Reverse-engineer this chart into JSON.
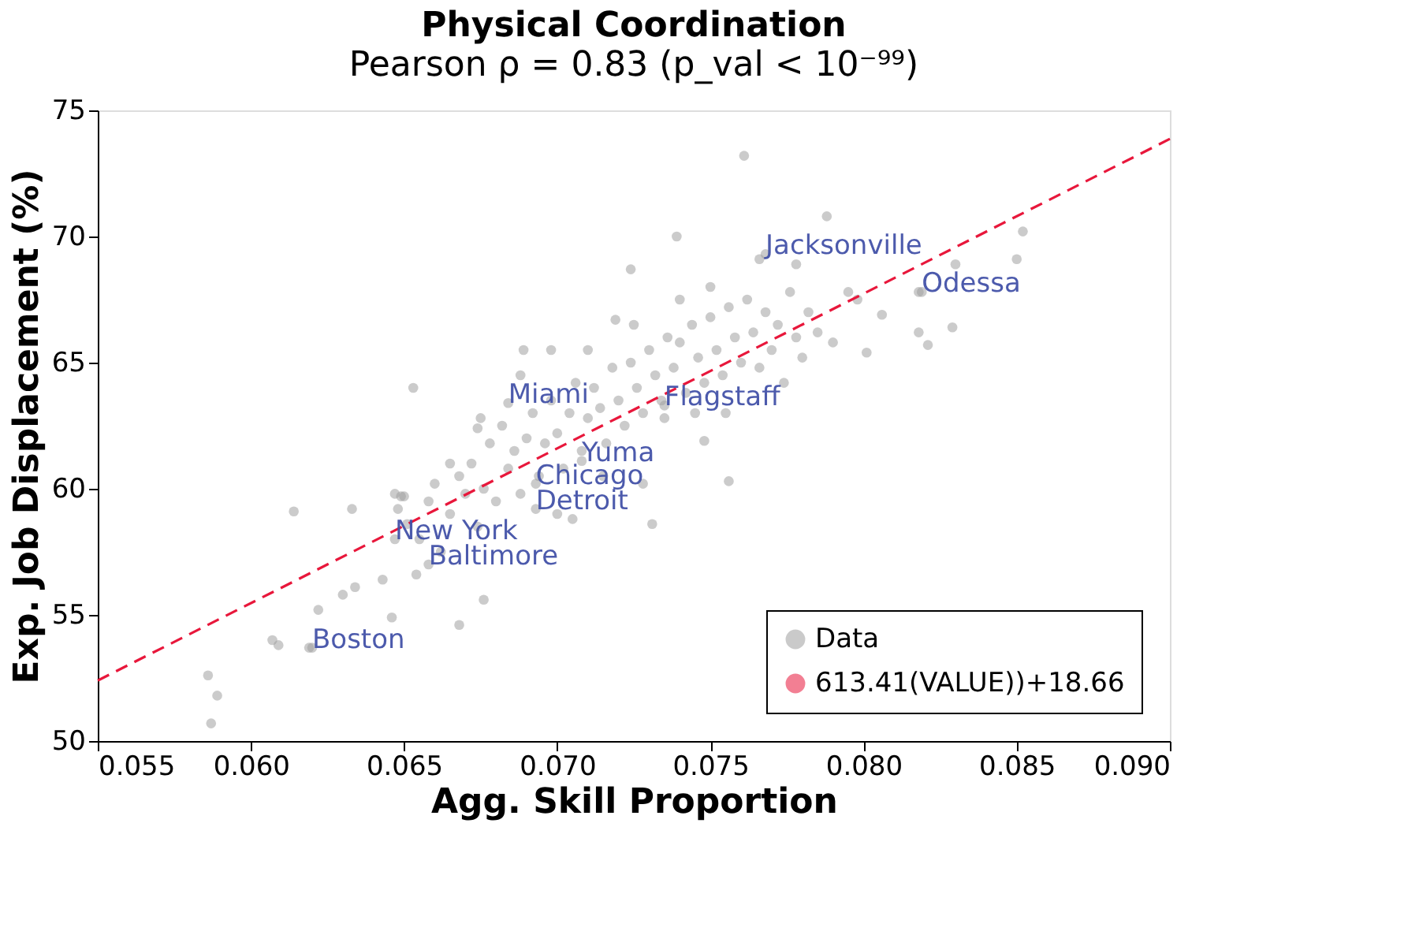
{
  "chart_data": {
    "type": "scatter",
    "title": "Physical Coordination",
    "subtitle": "Pearson ρ = 0.83 (p_val < 10⁻⁹⁹)",
    "xlabel": "Agg. Skill Proportion",
    "ylabel": "Exp. Job Displacement (%)",
    "xlim": [
      0.055,
      0.09
    ],
    "ylim": [
      50,
      75
    ],
    "xticks": [
      {
        "value": 0.055,
        "label": "0.055"
      },
      {
        "value": 0.06,
        "label": "0.060"
      },
      {
        "value": 0.065,
        "label": "0.065"
      },
      {
        "value": 0.07,
        "label": "0.070"
      },
      {
        "value": 0.075,
        "label": "0.075"
      },
      {
        "value": 0.08,
        "label": "0.080"
      },
      {
        "value": 0.085,
        "label": "0.085"
      },
      {
        "value": 0.09,
        "label": "0.090"
      }
    ],
    "yticks": [
      50,
      55,
      60,
      65,
      70,
      75
    ],
    "grid": false,
    "legend": "bottom right",
    "marker": "circle",
    "series": [
      {
        "name": "Data",
        "color": "#a0a0a0",
        "x": [
          0.062,
          0.0647,
          0.0658,
          0.0693,
          0.0693,
          0.0708,
          0.0684,
          0.0735,
          0.0768,
          0.0819,
          0.0586,
          0.0589,
          0.0587,
          0.0607,
          0.0609,
          0.0619,
          0.0622,
          0.063,
          0.0634,
          0.0643,
          0.0646,
          0.0668,
          0.0676,
          0.0654,
          0.0614,
          0.0633,
          0.0647,
          0.0649,
          0.065,
          0.0648,
          0.0651,
          0.0653,
          0.0689,
          0.0698,
          0.0724,
          0.0719,
          0.0739,
          0.0756,
          0.0731,
          0.0748,
          0.0674,
          0.0761,
          0.0788,
          0.0852,
          0.085,
          0.0829,
          0.0818,
          0.0821,
          0.0818,
          0.0806,
          0.083,
          0.0778,
          0.0766,
          0.0801,
          0.0798,
          0.0655,
          0.0658,
          0.066,
          0.0662,
          0.0665,
          0.0668,
          0.067,
          0.0672,
          0.0674,
          0.0676,
          0.0678,
          0.068,
          0.0682,
          0.0684,
          0.0686,
          0.0688,
          0.069,
          0.0692,
          0.0694,
          0.0696,
          0.0698,
          0.07,
          0.0702,
          0.0704,
          0.0706,
          0.0708,
          0.071,
          0.0712,
          0.0714,
          0.0716,
          0.0718,
          0.072,
          0.0722,
          0.0724,
          0.0726,
          0.0728,
          0.073,
          0.0732,
          0.0734,
          0.0736,
          0.0738,
          0.074,
          0.0742,
          0.0744,
          0.0746,
          0.0748,
          0.075,
          0.0752,
          0.0754,
          0.0756,
          0.0758,
          0.076,
          0.0762,
          0.0764,
          0.0766,
          0.0768,
          0.077,
          0.0772,
          0.0774,
          0.0776,
          0.0778,
          0.078,
          0.0782,
          0.0785,
          0.079,
          0.0795,
          0.0688,
          0.07,
          0.0715,
          0.0735,
          0.0745,
          0.071,
          0.0725,
          0.075,
          0.0755,
          0.0665,
          0.0675,
          0.0705,
          0.0728,
          0.074
        ],
        "values": [
          53.7,
          58.0,
          57.0,
          60.2,
          59.2,
          61.1,
          63.4,
          63.3,
          69.3,
          67.8,
          52.6,
          51.8,
          50.7,
          54.0,
          53.8,
          53.7,
          55.2,
          55.8,
          56.1,
          56.4,
          54.9,
          54.6,
          55.6,
          56.6,
          59.1,
          59.2,
          59.8,
          59.7,
          59.7,
          59.2,
          58.6,
          64.0,
          65.5,
          65.5,
          68.7,
          66.7,
          70.0,
          60.3,
          58.6,
          61.9,
          62.4,
          73.2,
          70.8,
          70.2,
          69.1,
          66.4,
          66.2,
          65.7,
          67.8,
          66.9,
          68.9,
          68.9,
          69.1,
          65.4,
          67.5,
          58.0,
          59.5,
          60.2,
          57.5,
          59.0,
          60.5,
          59.8,
          61.0,
          58.5,
          60.0,
          61.8,
          59.5,
          62.5,
          60.8,
          61.5,
          59.8,
          62.0,
          63.0,
          60.5,
          61.8,
          63.5,
          62.2,
          60.8,
          63.0,
          64.2,
          61.5,
          62.8,
          64.0,
          63.2,
          61.8,
          64.8,
          63.5,
          62.5,
          65.0,
          64.0,
          63.0,
          65.5,
          64.5,
          63.5,
          66.0,
          64.8,
          65.8,
          63.8,
          66.5,
          65.2,
          64.2,
          66.8,
          65.5,
          64.5,
          67.2,
          66.0,
          65.0,
          67.5,
          66.2,
          64.8,
          67.0,
          65.5,
          66.5,
          64.2,
          67.8,
          66.0,
          65.2,
          67.0,
          66.2,
          65.8,
          67.8,
          64.5,
          59.0,
          60.5,
          62.8,
          63.0,
          65.5,
          66.5,
          68.0,
          63.0,
          61.0,
          62.8,
          58.8,
          60.2,
          67.5
        ]
      },
      {
        "name": "613.41(VALUE))+18.66",
        "type": "line",
        "color": "#e8173b",
        "line_style": "dashed",
        "marker": "none",
        "x": [
          0.055,
          0.09
        ],
        "values": [
          52.4,
          73.87
        ]
      }
    ],
    "annotations": [
      {
        "text": "Boston",
        "x": 0.062,
        "y": 53.7
      },
      {
        "text": "New York",
        "x": 0.0647,
        "y": 58.0
      },
      {
        "text": "Baltimore",
        "x": 0.0658,
        "y": 57.0
      },
      {
        "text": "Chicago",
        "x": 0.0693,
        "y": 60.2
      },
      {
        "text": "Detroit",
        "x": 0.0693,
        "y": 59.2
      },
      {
        "text": "Yuma",
        "x": 0.0708,
        "y": 61.1
      },
      {
        "text": "Miami",
        "x": 0.0684,
        "y": 63.4
      },
      {
        "text": "Flagstaff",
        "x": 0.0735,
        "y": 63.3
      },
      {
        "text": "Jacksonville",
        "x": 0.0768,
        "y": 69.3
      },
      {
        "text": "Odessa",
        "x": 0.0819,
        "y": 67.8
      }
    ]
  }
}
